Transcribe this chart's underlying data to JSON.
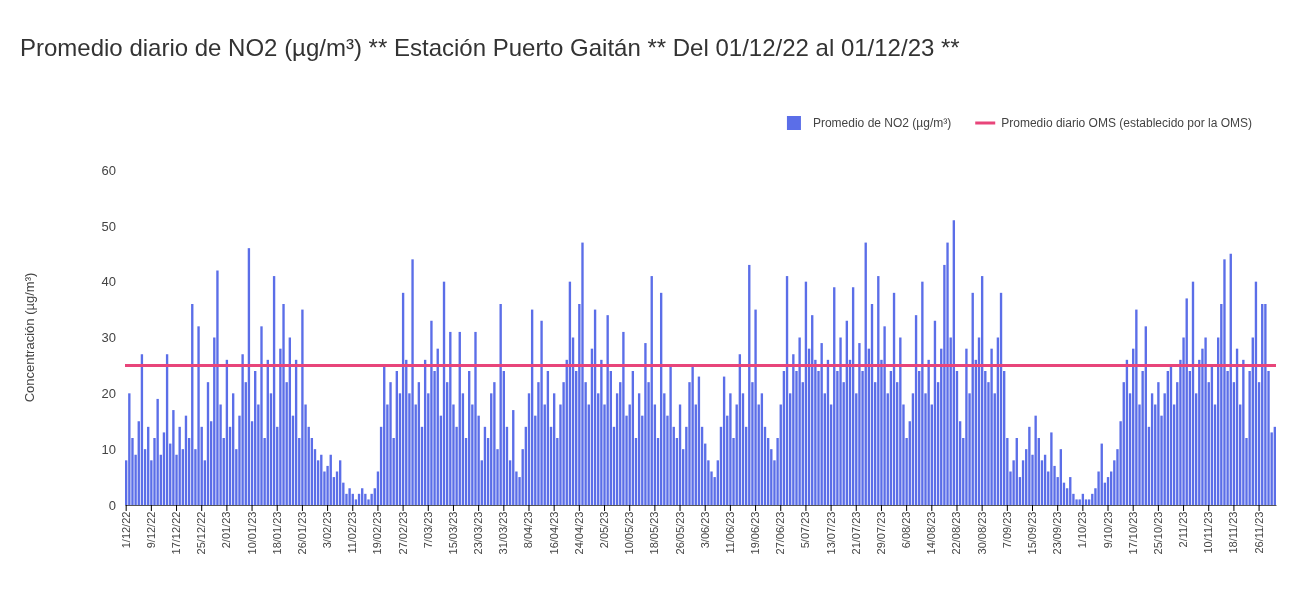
{
  "chart_data": {
    "type": "bar",
    "title": "Promedio diario de NO2 (µg/m³) ** Estación Puerto Gaitán ** Del 01/12/22 al 01/12/23 **",
    "ylabel": "Concentración (µg/m³)",
    "categories": [
      "1/12/22",
      null,
      null,
      null,
      null,
      null,
      null,
      null,
      "9/12/22",
      null,
      null,
      null,
      null,
      null,
      null,
      null,
      "17/12/22",
      null,
      null,
      null,
      null,
      null,
      null,
      null,
      "25/12/22",
      null,
      null,
      null,
      null,
      null,
      null,
      null,
      "2/01/23",
      null,
      null,
      null,
      null,
      null,
      null,
      null,
      "10/01/23",
      null,
      null,
      null,
      null,
      null,
      null,
      null,
      "18/01/23",
      null,
      null,
      null,
      null,
      null,
      null,
      null,
      "26/01/23",
      null,
      null,
      null,
      null,
      null,
      null,
      null,
      "3/02/23",
      null,
      null,
      null,
      null,
      null,
      null,
      null,
      "11/02/23",
      null,
      null,
      null,
      null,
      null,
      null,
      null,
      "19/02/23",
      null,
      null,
      null,
      null,
      null,
      null,
      null,
      "27/02/23",
      null,
      null,
      null,
      null,
      null,
      null,
      null,
      "7/03/23",
      null,
      null,
      null,
      null,
      null,
      null,
      null,
      "15/03/23",
      null,
      null,
      null,
      null,
      null,
      null,
      null,
      "23/03/23",
      null,
      null,
      null,
      null,
      null,
      null,
      null,
      "31/03/23",
      null,
      null,
      null,
      null,
      null,
      null,
      null,
      "8/04/23",
      null,
      null,
      null,
      null,
      null,
      null,
      null,
      "16/04/23",
      null,
      null,
      null,
      null,
      null,
      null,
      null,
      "24/04/23",
      null,
      null,
      null,
      null,
      null,
      null,
      null,
      "2/05/23",
      null,
      null,
      null,
      null,
      null,
      null,
      null,
      "10/05/23",
      null,
      null,
      null,
      null,
      null,
      null,
      null,
      "18/05/23",
      null,
      null,
      null,
      null,
      null,
      null,
      null,
      "26/05/23",
      null,
      null,
      null,
      null,
      null,
      null,
      null,
      "3/06/23",
      null,
      null,
      null,
      null,
      null,
      null,
      null,
      "11/06/23",
      null,
      null,
      null,
      null,
      null,
      null,
      null,
      "19/06/23",
      null,
      null,
      null,
      null,
      null,
      null,
      null,
      "27/06/23",
      null,
      null,
      null,
      null,
      null,
      null,
      null,
      "5/07/23",
      null,
      null,
      null,
      null,
      null,
      null,
      null,
      "13/07/23",
      null,
      null,
      null,
      null,
      null,
      null,
      null,
      "21/07/23",
      null,
      null,
      null,
      null,
      null,
      null,
      null,
      "29/07/23",
      null,
      null,
      null,
      null,
      null,
      null,
      null,
      "6/08/23",
      null,
      null,
      null,
      null,
      null,
      null,
      null,
      "14/08/23",
      null,
      null,
      null,
      null,
      null,
      null,
      null,
      "22/08/23",
      null,
      null,
      null,
      null,
      null,
      null,
      null,
      "30/08/23",
      null,
      null,
      null,
      null,
      null,
      null,
      null,
      "7/09/23",
      null,
      null,
      null,
      null,
      null,
      null,
      null,
      "15/09/23",
      null,
      null,
      null,
      null,
      null,
      null,
      null,
      "23/09/23",
      null,
      null,
      null,
      null,
      null,
      null,
      null,
      "1/10/23",
      null,
      null,
      null,
      null,
      null,
      null,
      null,
      "9/10/23",
      null,
      null,
      null,
      null,
      null,
      null,
      null,
      "17/10/23",
      null,
      null,
      null,
      null,
      null,
      null,
      null,
      "25/10/23",
      null,
      null,
      null,
      null,
      null,
      null,
      null,
      "2/11/23",
      null,
      null,
      null,
      null,
      null,
      null,
      null,
      "10/11/23",
      null,
      null,
      null,
      null,
      null,
      null,
      null,
      "18/11/23",
      null,
      null,
      null,
      null,
      null,
      null,
      null,
      "26/11/23",
      null,
      null,
      null,
      null,
      null
    ],
    "series": [
      {
        "name": "Promedio de NO2 (µg/m³)",
        "color": "#5b6ee8",
        "values": [
          8,
          20,
          12,
          9,
          15,
          27,
          10,
          14,
          8,
          12,
          19,
          9,
          13,
          27,
          11,
          17,
          9,
          14,
          10,
          16,
          12,
          36,
          10,
          32,
          14,
          8,
          22,
          15,
          30,
          42,
          18,
          12,
          26,
          14,
          20,
          10,
          16,
          27,
          22,
          46,
          15,
          24,
          18,
          32,
          12,
          26,
          20,
          41,
          14,
          28,
          36,
          22,
          30,
          16,
          26,
          12,
          35,
          18,
          14,
          12,
          10,
          8,
          9,
          6,
          7,
          9,
          5,
          6,
          8,
          4,
          2,
          3,
          2,
          1,
          2,
          3,
          2,
          1,
          2,
          3,
          6,
          14,
          25,
          18,
          22,
          12,
          24,
          20,
          38,
          26,
          20,
          44,
          18,
          22,
          14,
          26,
          20,
          33,
          24,
          28,
          16,
          40,
          22,
          31,
          18,
          14,
          31,
          20,
          12,
          24,
          18,
          31,
          16,
          8,
          14,
          12,
          20,
          22,
          10,
          36,
          24,
          14,
          8,
          17,
          6,
          5,
          10,
          14,
          20,
          35,
          16,
          22,
          33,
          18,
          24,
          14,
          20,
          12,
          18,
          22,
          26,
          40,
          30,
          24,
          36,
          47,
          22,
          18,
          28,
          35,
          20,
          26,
          18,
          34,
          24,
          14,
          20,
          22,
          31,
          16,
          18,
          24,
          12,
          20,
          16,
          29,
          22,
          41,
          18,
          12,
          38,
          20,
          16,
          25,
          14,
          12,
          18,
          10,
          14,
          22,
          25,
          18,
          23,
          14,
          11,
          8,
          6,
          5,
          8,
          14,
          23,
          16,
          20,
          12,
          18,
          27,
          20,
          14,
          43,
          22,
          35,
          18,
          20,
          14,
          12,
          10,
          8,
          12,
          18,
          24,
          41,
          20,
          27,
          24,
          30,
          22,
          40,
          28,
          34,
          26,
          24,
          29,
          20,
          26,
          18,
          39,
          24,
          30,
          22,
          33,
          26,
          39,
          20,
          29,
          24,
          47,
          28,
          36,
          22,
          41,
          26,
          32,
          20,
          24,
          38,
          22,
          30,
          18,
          12,
          15,
          20,
          34,
          24,
          40,
          20,
          26,
          18,
          33,
          22,
          28,
          43,
          47,
          30,
          51,
          24,
          15,
          12,
          28,
          20,
          38,
          26,
          30,
          41,
          24,
          22,
          28,
          20,
          30,
          38,
          24,
          12,
          6,
          8,
          12,
          5,
          8,
          10,
          14,
          9,
          16,
          12,
          8,
          9,
          6,
          13,
          7,
          5,
          10,
          4,
          3,
          5,
          2,
          1,
          1,
          2,
          1,
          1,
          2,
          3,
          6,
          11,
          4,
          5,
          6,
          8,
          10,
          15,
          22,
          26,
          20,
          28,
          35,
          18,
          24,
          32,
          14,
          20,
          18,
          22,
          16,
          20,
          24,
          25,
          18,
          22,
          26,
          30,
          37,
          24,
          40,
          20,
          26,
          28,
          30,
          22,
          25,
          18,
          30,
          36,
          44,
          24,
          45,
          22,
          28,
          18,
          26,
          12,
          24,
          30,
          40,
          22,
          36,
          36,
          24,
          13,
          14
        ]
      }
    ],
    "ref_lines": [
      {
        "axis": "y",
        "value": 25,
        "label": "Promedio diario OMS (establecido por la OMS)",
        "color": "#e8457a"
      }
    ],
    "ylim": [
      0,
      60
    ],
    "yticks": [
      0,
      10,
      20,
      30,
      40,
      50,
      60
    ],
    "legend": "top right"
  }
}
